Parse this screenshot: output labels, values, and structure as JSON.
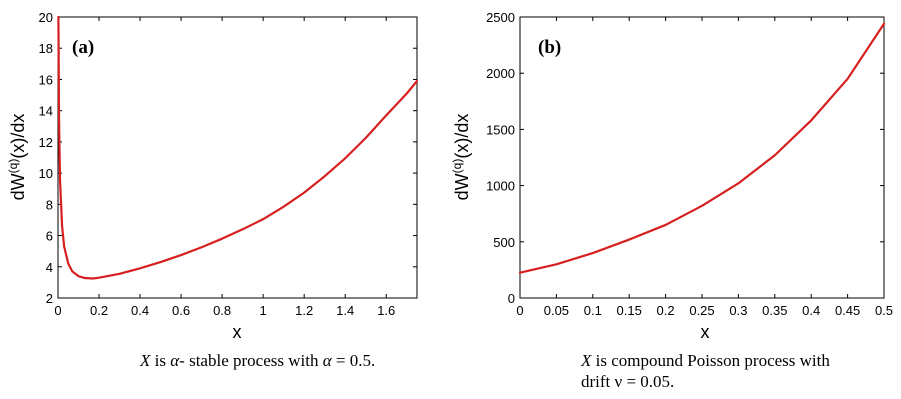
{
  "chart_data": [
    {
      "type": "line",
      "panel_label": "(a)",
      "xlabel": "x",
      "ylabel_main": "dW",
      "ylabel_sup": "(q)",
      "ylabel_tail": "(x)/dx",
      "xlim": [
        0,
        1.75
      ],
      "ylim": [
        2,
        20
      ],
      "xticks": [
        "0",
        "0.2",
        "0.4",
        "0.6",
        "0.8",
        "1",
        "1.2",
        "1.4",
        "1.6"
      ],
      "yticks": [
        "2",
        "4",
        "6",
        "8",
        "10",
        "12",
        "14",
        "16",
        "18",
        "20"
      ],
      "line_color": "#d62020",
      "series": [
        {
          "x": [
            0.002,
            0.005,
            0.01,
            0.02,
            0.03,
            0.05,
            0.07,
            0.1,
            0.13,
            0.17,
            0.2,
            0.3,
            0.4,
            0.5,
            0.6,
            0.7,
            0.8,
            0.9,
            1.0,
            1.1,
            1.2,
            1.3,
            1.4,
            1.5,
            1.6,
            1.7,
            1.75
          ],
          "y": [
            20,
            13.5,
            9.5,
            6.6,
            5.3,
            4.2,
            3.7,
            3.4,
            3.28,
            3.25,
            3.3,
            3.55,
            3.9,
            4.3,
            4.75,
            5.25,
            5.8,
            6.4,
            7.05,
            7.85,
            8.75,
            9.8,
            10.95,
            12.25,
            13.7,
            15.1,
            15.9
          ]
        }
      ],
      "caption": {
        "v1": "X",
        "t1": " is ",
        "v2": "α",
        "t2": "- stable process with ",
        "v3": "α",
        "t3": " = 0.5."
      }
    },
    {
      "type": "line",
      "panel_label": "(b)",
      "xlabel": "x",
      "ylabel_main": "dW",
      "ylabel_sup": "(q)",
      "ylabel_tail": "(x)/dx",
      "xlim": [
        0,
        0.5
      ],
      "ylim": [
        0,
        2500
      ],
      "xticks": [
        "0",
        "0.05",
        "0.1",
        "0.15",
        "0.2",
        "0.25",
        "0.3",
        "0.35",
        "0.4",
        "0.45",
        "0.5"
      ],
      "yticks": [
        "0",
        "500",
        "1000",
        "1500",
        "2000",
        "2500"
      ],
      "line_color": "#d62020",
      "series": [
        {
          "x": [
            0,
            0.05,
            0.1,
            0.15,
            0.2,
            0.25,
            0.3,
            0.35,
            0.4,
            0.45,
            0.5
          ],
          "y": [
            225,
            300,
            400,
            520,
            650,
            820,
            1020,
            1270,
            1580,
            1950,
            2440
          ]
        }
      ],
      "caption": {
        "v1": "X",
        "t1": " is compound Poisson process with",
        "line2": "drift ν = 0.05."
      }
    }
  ]
}
